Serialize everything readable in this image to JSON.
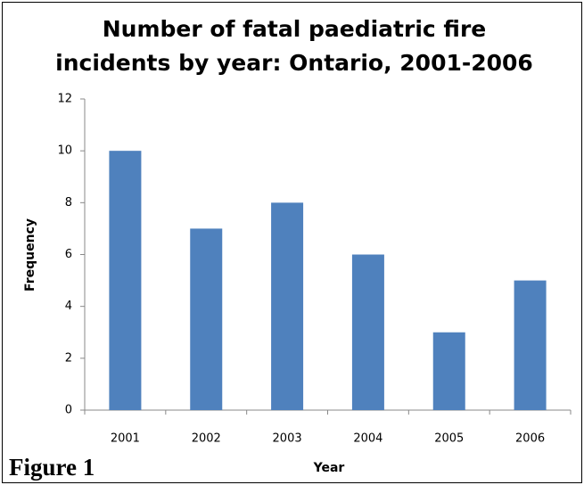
{
  "chart_data": {
    "type": "bar",
    "title": [
      "Number of fatal paediatric fire",
      "incidents by year: Ontario, 2001-2006"
    ],
    "x_label": "Year",
    "y_label": "Frequency",
    "categories": [
      "2001",
      "2002",
      "2003",
      "2004",
      "2005",
      "2006"
    ],
    "values": [
      10,
      7,
      8,
      6,
      3,
      5
    ],
    "color": "#4f81bd",
    "ylim": [
      0,
      12
    ],
    "yticks": [
      0,
      2,
      4,
      6,
      8,
      10,
      12
    ],
    "grid": false
  },
  "figure_label": "Figure 1"
}
